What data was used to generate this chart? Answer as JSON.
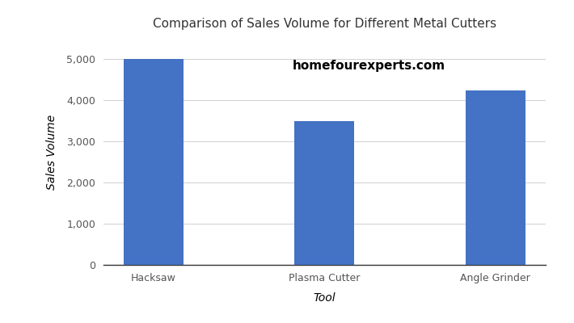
{
  "categories": [
    "Hacksaw",
    "Plasma Cutter",
    "Angle Grinder"
  ],
  "values": [
    5000,
    3500,
    4250
  ],
  "bar_color": "#4472C4",
  "title": "Comparison of Sales Volume for Different Metal Cutters",
  "xlabel": "Tool",
  "ylabel": "Sales Volume",
  "ylim": [
    0,
    5500
  ],
  "yticks": [
    0,
    1000,
    2000,
    3000,
    4000,
    5000
  ],
  "watermark": "homefourexperts.com",
  "background_color": "#ffffff",
  "title_fontsize": 11,
  "label_fontsize": 10,
  "tick_fontsize": 9,
  "watermark_fontsize": 11
}
